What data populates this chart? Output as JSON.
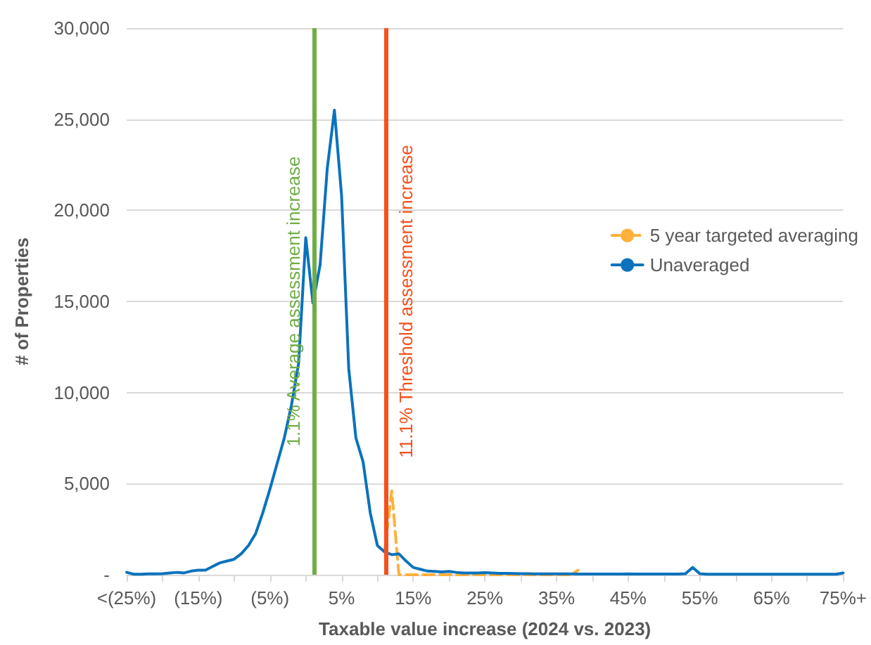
{
  "chart_data": {
    "type": "line",
    "xlabel": "Taxable value increase (2024 vs. 2023)",
    "ylabel": "# of Properties",
    "xlim": [
      -25,
      75
    ],
    "xticks": [
      {
        "value": -25,
        "label": "<(25%)"
      },
      {
        "value": -20,
        "label": null
      },
      {
        "value": -15,
        "label": "(15%)"
      },
      {
        "value": -10,
        "label": null
      },
      {
        "value": -5,
        "label": "(5%)"
      },
      {
        "value": 0,
        "label": null
      },
      {
        "value": 5,
        "label": "5%"
      },
      {
        "value": 10,
        "label": null
      },
      {
        "value": 15,
        "label": "15%"
      },
      {
        "value": 20,
        "label": null
      },
      {
        "value": 25,
        "label": "25%"
      },
      {
        "value": 30,
        "label": null
      },
      {
        "value": 35,
        "label": "35%"
      },
      {
        "value": 40,
        "label": null
      },
      {
        "value": 45,
        "label": "45%"
      },
      {
        "value": 50,
        "label": null
      },
      {
        "value": 55,
        "label": "55%"
      },
      {
        "value": 60,
        "label": null
      },
      {
        "value": 65,
        "label": "65%"
      },
      {
        "value": 70,
        "label": null
      },
      {
        "value": 75,
        "label": "75%+"
      }
    ],
    "ylim": [
      0,
      30000
    ],
    "yticks": [
      {
        "value": 0,
        "label": "-"
      },
      {
        "value": 5000,
        "label": "5,000"
      },
      {
        "value": 10000,
        "label": "10,000"
      },
      {
        "value": 15000,
        "label": "15,000"
      },
      {
        "value": 20000,
        "label": "20,000"
      },
      {
        "value": 25000,
        "label": "25,000"
      },
      {
        "value": 30000,
        "label": "30,000"
      }
    ],
    "grid": "y",
    "legend": "right",
    "marker": "none",
    "series": [
      {
        "name": "5 year targeted averaging",
        "color": "#ffb13b",
        "line_style": "dashed",
        "x": [
          11,
          12,
          13,
          14,
          15,
          16,
          17,
          18,
          19,
          20,
          21,
          22,
          23,
          24,
          25,
          26,
          27,
          28,
          29,
          30,
          31,
          32,
          33,
          34,
          35,
          36,
          37,
          38
        ],
        "values": [
          1300,
          4600,
          0,
          0,
          0,
          0,
          0,
          0,
          0,
          0,
          0,
          0,
          0,
          0,
          0,
          0,
          0,
          0,
          0,
          0,
          0,
          0,
          0,
          0,
          0,
          0,
          0,
          250
        ]
      },
      {
        "name": "Unaveraged",
        "color": "#0b72bd",
        "line_style": "solid",
        "x": [
          -25,
          -24,
          -23,
          -22,
          -21,
          -20,
          -19,
          -18,
          -17,
          -16,
          -15,
          -14,
          -13,
          -12,
          -11,
          -10,
          -9,
          -8,
          -7,
          -6,
          -5,
          -4,
          -3,
          -2,
          -1,
          0,
          1,
          2,
          3,
          4,
          5,
          6,
          7,
          8,
          9,
          10,
          11,
          12,
          13,
          14,
          15,
          16,
          17,
          18,
          19,
          20,
          21,
          22,
          23,
          24,
          25,
          26,
          27,
          28,
          29,
          30,
          31,
          32,
          33,
          34,
          35,
          36,
          37,
          38,
          39,
          40,
          41,
          42,
          43,
          44,
          45,
          46,
          47,
          48,
          49,
          50,
          51,
          52,
          53,
          54,
          55,
          56,
          57,
          58,
          59,
          60,
          61,
          62,
          63,
          64,
          65,
          66,
          67,
          68,
          69,
          70,
          71,
          72,
          73,
          74,
          75
        ],
        "values": [
          130,
          30,
          30,
          50,
          50,
          60,
          100,
          130,
          100,
          200,
          250,
          250,
          450,
          650,
          750,
          850,
          1150,
          1600,
          2250,
          3400,
          4700,
          6100,
          7500,
          9300,
          11600,
          18500,
          14900,
          17000,
          22300,
          25500,
          20800,
          11300,
          7500,
          6200,
          3400,
          1600,
          1250,
          1100,
          1150,
          750,
          400,
          300,
          200,
          180,
          150,
          180,
          130,
          100,
          100,
          100,
          120,
          100,
          80,
          80,
          70,
          60,
          60,
          50,
          50,
          50,
          50,
          50,
          50,
          40,
          40,
          40,
          40,
          40,
          40,
          40,
          50,
          40,
          40,
          40,
          40,
          40,
          40,
          40,
          60,
          400,
          60,
          30,
          30,
          30,
          30,
          30,
          30,
          30,
          30,
          30,
          30,
          30,
          30,
          30,
          30,
          30,
          30,
          30,
          30,
          30,
          100
        ]
      }
    ],
    "ref_lines": [
      {
        "axis": "x",
        "value": 1.1,
        "label": "1.1% Average assessment increase",
        "color": "#70ad47"
      },
      {
        "axis": "x",
        "value": 11.1,
        "label": "11.1% Threshold assessment increase",
        "color": "#f4511e"
      }
    ]
  }
}
